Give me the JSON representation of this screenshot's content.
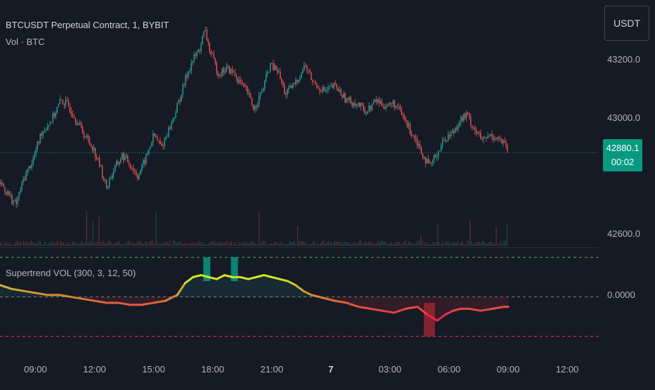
{
  "header": {
    "title": "BTCUSDT Perpetual Contract, 1, BYBIT",
    "subtitle": "Vol · BTC",
    "currency": "USDT"
  },
  "indicator": {
    "label": "Supertrend VOL (300, 3, 12, 50)",
    "zero_label": "0.0000"
  },
  "last_price": {
    "value": "42880.1",
    "countdown": "00:02"
  },
  "colors": {
    "bg": "#161a25",
    "up": "#26a69a",
    "down": "#ef5350",
    "last": "#089981",
    "upper_dash": "#4caf50",
    "lower_dash": "#f23645",
    "zero_dash": "#787b86"
  },
  "chart_data": [
    {
      "type": "candlestick",
      "title": "BTCUSDT Perpetual Contract, 1, BYBIT",
      "y_ticks": [
        "43200.0",
        "43000.0",
        "42600.0"
      ],
      "y_tick_values": [
        43200,
        43000,
        42600
      ],
      "ylim": [
        42560,
        43380
      ],
      "last_price": 42880.1,
      "x_ticks": [
        "09:00",
        "12:00",
        "15:00",
        "18:00",
        "21:00",
        "7",
        "03:00",
        "06:00",
        "09:00",
        "12:00"
      ],
      "x_tick_hours": [
        9,
        12,
        15,
        18,
        21,
        24,
        27,
        30,
        33,
        36
      ],
      "xlim_hours": [
        7.2,
        37.6
      ],
      "price_path": [
        [
          7.2,
          42780
        ],
        [
          7.6,
          42740
        ],
        [
          8.0,
          42700
        ],
        [
          8.4,
          42790
        ],
        [
          8.9,
          42860
        ],
        [
          9.3,
          42950
        ],
        [
          9.8,
          42990
        ],
        [
          10.3,
          43060
        ],
        [
          10.7,
          43040
        ],
        [
          11.1,
          42990
        ],
        [
          11.5,
          42940
        ],
        [
          11.9,
          42900
        ],
        [
          12.3,
          42830
        ],
        [
          12.6,
          42760
        ],
        [
          12.9,
          42810
        ],
        [
          13.4,
          42870
        ],
        [
          13.7,
          42850
        ],
        [
          14.2,
          42800
        ],
        [
          14.6,
          42860
        ],
        [
          15.0,
          42940
        ],
        [
          15.4,
          42900
        ],
        [
          15.9,
          42980
        ],
        [
          16.3,
          43060
        ],
        [
          16.7,
          43150
        ],
        [
          17.0,
          43200
        ],
        [
          17.3,
          43230
        ],
        [
          17.6,
          43300
        ],
        [
          17.9,
          43220
        ],
        [
          18.3,
          43150
        ],
        [
          18.7,
          43170
        ],
        [
          19.1,
          43150
        ],
        [
          19.4,
          43120
        ],
        [
          19.8,
          43080
        ],
        [
          20.1,
          43030
        ],
        [
          20.5,
          43090
        ],
        [
          20.9,
          43180
        ],
        [
          21.3,
          43160
        ],
        [
          21.7,
          43080
        ],
        [
          22.2,
          43120
        ],
        [
          22.7,
          43180
        ],
        [
          23.1,
          43120
        ],
        [
          23.7,
          43090
        ],
        [
          24.2,
          43110
        ],
        [
          24.8,
          43060
        ],
        [
          25.3,
          43050
        ],
        [
          25.8,
          43020
        ],
        [
          26.3,
          43060
        ],
        [
          26.8,
          43040
        ],
        [
          27.2,
          43050
        ],
        [
          27.6,
          43010
        ],
        [
          28.0,
          42960
        ],
        [
          28.3,
          42930
        ],
        [
          28.7,
          42870
        ],
        [
          29.0,
          42830
        ],
        [
          29.4,
          42880
        ],
        [
          29.8,
          42930
        ],
        [
          30.2,
          42950
        ],
        [
          30.5,
          42990
        ],
        [
          30.9,
          43010
        ],
        [
          31.3,
          42960
        ],
        [
          31.7,
          42920
        ],
        [
          32.1,
          42940
        ],
        [
          32.5,
          42930
        ],
        [
          32.9,
          42900
        ],
        [
          33.0,
          42880
        ]
      ]
    },
    {
      "type": "line",
      "name": "Supertrend VOL (300, 3, 12, 50)",
      "y_tick": "0.0000",
      "zero_value": 0,
      "upper_level": 1.0,
      "lower_level": -1.0,
      "ylim": [
        -1.2,
        1.2
      ],
      "x": [
        7.2,
        7.8,
        8.4,
        9.0,
        9.6,
        10.2,
        10.8,
        11.4,
        12.0,
        12.6,
        13.2,
        13.8,
        14.4,
        15.0,
        15.6,
        16.2,
        16.6,
        17.0,
        17.4,
        17.8,
        18.2,
        18.6,
        19.0,
        19.4,
        19.8,
        20.2,
        20.6,
        21.0,
        21.4,
        21.8,
        22.2,
        22.6,
        23.0,
        23.4,
        23.8,
        24.2,
        24.8,
        25.4,
        26.0,
        26.6,
        27.2,
        27.8,
        28.4,
        28.9,
        29.4,
        29.8,
        30.2,
        30.6,
        31.0,
        31.6,
        32.2,
        32.8,
        33.0
      ],
      "y": [
        0.3,
        0.2,
        0.15,
        0.1,
        0.05,
        0.05,
        0.0,
        -0.05,
        -0.1,
        -0.15,
        -0.15,
        -0.2,
        -0.2,
        -0.15,
        -0.1,
        0.05,
        0.35,
        0.5,
        0.55,
        0.5,
        0.45,
        0.55,
        0.5,
        0.5,
        0.45,
        0.5,
        0.55,
        0.5,
        0.45,
        0.4,
        0.3,
        0.15,
        0.05,
        0.0,
        -0.05,
        -0.1,
        -0.15,
        -0.25,
        -0.3,
        -0.35,
        -0.4,
        -0.3,
        -0.25,
        -0.45,
        -0.6,
        -0.45,
        -0.35,
        -0.3,
        -0.3,
        -0.35,
        -0.3,
        -0.25,
        -0.25
      ],
      "green_bars_hours": [
        17.7,
        19.1
      ],
      "red_bar_hours": 29.0
    }
  ]
}
